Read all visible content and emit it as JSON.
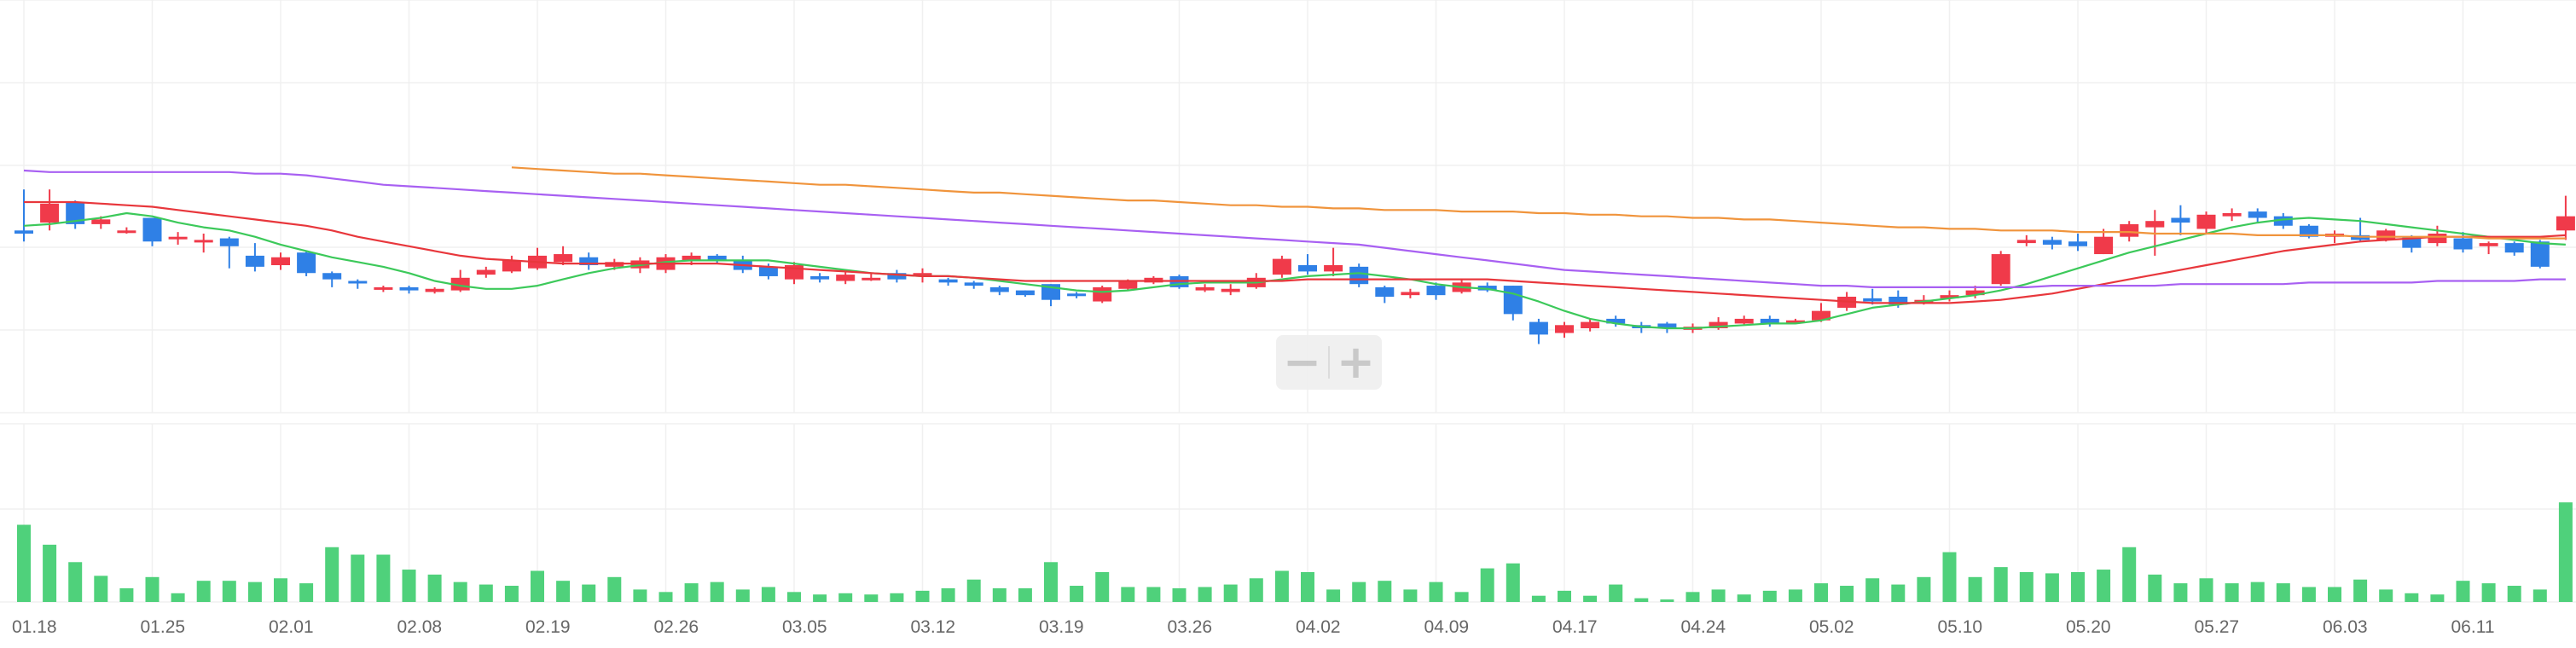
{
  "chart_data": {
    "type": "candlestick",
    "x_tick_labels": [
      "01.18",
      "01.25",
      "02.01",
      "02.08",
      "02.19",
      "02.26",
      "03.05",
      "03.12",
      "03.19",
      "03.26",
      "04.02",
      "04.09",
      "04.17",
      "04.24",
      "05.02",
      "05.10",
      "05.20",
      "05.27",
      "06.03",
      "06.11"
    ],
    "x_tick_index": [
      0,
      5,
      10,
      15,
      20,
      25,
      30,
      35,
      40,
      45,
      50,
      55,
      60,
      65,
      70,
      75,
      80,
      85,
      90,
      95
    ],
    "colors": {
      "up": "#f03a4a",
      "down": "#2f80e6",
      "volume": "#4fd17b",
      "ma5": "#3cc95a",
      "ma20": "#e8373c",
      "ma60": "#a860f2",
      "ma120": "#f0943c",
      "grid": "#f0f0f0"
    },
    "grid": true,
    "price_ylim": [
      0,
      100
    ],
    "volume_ylim": [
      0,
      100
    ],
    "candles": [
      [
        62,
        60,
        88,
        55
      ],
      [
        67,
        79,
        88,
        62
      ],
      [
        80,
        66,
        81,
        63
      ],
      [
        66,
        69,
        71,
        63
      ],
      [
        61,
        62,
        64,
        60
      ],
      [
        70,
        55,
        70,
        52
      ],
      [
        58,
        58,
        61,
        53
      ],
      [
        56,
        56,
        60,
        48
      ],
      [
        57,
        52,
        58,
        38
      ],
      [
        46,
        39,
        54,
        36
      ],
      [
        40,
        45,
        48,
        37
      ],
      [
        48,
        35,
        49,
        33
      ],
      [
        35,
        31,
        36,
        26
      ],
      [
        30,
        29,
        31,
        25
      ],
      [
        25,
        26,
        27,
        23
      ],
      [
        26,
        24,
        27,
        22
      ],
      [
        23,
        25,
        26,
        22
      ],
      [
        24,
        32,
        37,
        23
      ],
      [
        34,
        37,
        39,
        32
      ],
      [
        36,
        43,
        46,
        35
      ],
      [
        38,
        46,
        51,
        37
      ],
      [
        42,
        47,
        52,
        40
      ],
      [
        45,
        40,
        48,
        37
      ],
      [
        39,
        42,
        44,
        37
      ],
      [
        38,
        43,
        45,
        35
      ],
      [
        37,
        45,
        47,
        35
      ],
      [
        43,
        46,
        48,
        40
      ],
      [
        46,
        43,
        47,
        41
      ],
      [
        43,
        37,
        46,
        35
      ],
      [
        39,
        33,
        41,
        31
      ],
      [
        31,
        40,
        42,
        28
      ],
      [
        33,
        31,
        35,
        29
      ],
      [
        30,
        34,
        36,
        28
      ],
      [
        32,
        32,
        35,
        30
      ],
      [
        35,
        31,
        37,
        29
      ],
      [
        33,
        35,
        38,
        29
      ],
      [
        31,
        29,
        32,
        27
      ],
      [
        29,
        27,
        30,
        25
      ],
      [
        26,
        23,
        27,
        21
      ],
      [
        24,
        21,
        24,
        20
      ],
      [
        28,
        18,
        28,
        14
      ],
      [
        22,
        21,
        23,
        19
      ],
      [
        17,
        26,
        27,
        16
      ],
      [
        25,
        30,
        31,
        24
      ],
      [
        29,
        32,
        33,
        28
      ],
      [
        33,
        26,
        34,
        25
      ],
      [
        24,
        26,
        28,
        23
      ],
      [
        23,
        25,
        28,
        21
      ],
      [
        26,
        32,
        35,
        25
      ],
      [
        34,
        44,
        46,
        32
      ],
      [
        40,
        36,
        47,
        34
      ],
      [
        36,
        40,
        51,
        33
      ],
      [
        39,
        28,
        41,
        26
      ],
      [
        26,
        20,
        27,
        16
      ],
      [
        21,
        23,
        25,
        19
      ],
      [
        27,
        21,
        29,
        18
      ],
      [
        23,
        29,
        31,
        22
      ],
      [
        27,
        24,
        29,
        23
      ],
      [
        27,
        9,
        27,
        5
      ],
      [
        4,
        -4,
        6,
        -10
      ],
      [
        -3,
        2,
        4,
        -6
      ],
      [
        0,
        4,
        6,
        -2
      ],
      [
        6,
        3,
        8,
        1
      ],
      [
        2,
        0,
        4,
        -3
      ],
      [
        3,
        0,
        4,
        -3
      ],
      [
        -1,
        1,
        3,
        -3
      ],
      [
        0,
        4,
        7,
        -1
      ],
      [
        3,
        6,
        8,
        2
      ],
      [
        6,
        3,
        8,
        1
      ],
      [
        4,
        5,
        6,
        3
      ],
      [
        5,
        11,
        16,
        4
      ],
      [
        13,
        20,
        23,
        11
      ],
      [
        19,
        17,
        25,
        15
      ],
      [
        20,
        15,
        24,
        13
      ],
      [
        16,
        18,
        21,
        15
      ],
      [
        19,
        21,
        24,
        17
      ],
      [
        21,
        24,
        27,
        19
      ],
      [
        28,
        47,
        49,
        27
      ],
      [
        54,
        56,
        59,
        52
      ],
      [
        56,
        53,
        58,
        50
      ],
      [
        55,
        52,
        60,
        49
      ],
      [
        47,
        58,
        63,
        47
      ],
      [
        58,
        66,
        68,
        55
      ],
      [
        64,
        68,
        75,
        46
      ],
      [
        70,
        67,
        78,
        59
      ],
      [
        63,
        72,
        74,
        60
      ],
      [
        71,
        73,
        76,
        68
      ],
      [
        74,
        70,
        76,
        67
      ],
      [
        71,
        65,
        73,
        63
      ],
      [
        65,
        58,
        66,
        57
      ],
      [
        58,
        60,
        62,
        54
      ],
      [
        59,
        56,
        70,
        55
      ],
      [
        56,
        62,
        63,
        55
      ],
      [
        58,
        51,
        59,
        48
      ],
      [
        54,
        60,
        65,
        52
      ],
      [
        57,
        50,
        61,
        48
      ],
      [
        52,
        54,
        55,
        47
      ],
      [
        54,
        48,
        55,
        46
      ],
      [
        55,
        39,
        56,
        38
      ],
      [
        62,
        71,
        84,
        56
      ]
    ],
    "volume": [
      62,
      46,
      32,
      21,
      11,
      20,
      7,
      17,
      17,
      16,
      19,
      15,
      44,
      38,
      38,
      26,
      22,
      16,
      14,
      13,
      25,
      17,
      14,
      20,
      10,
      8,
      15,
      16,
      10,
      12,
      8,
      6,
      7,
      6,
      7,
      9,
      11,
      18,
      11,
      11,
      32,
      13,
      24,
      12,
      12,
      11,
      12,
      14,
      19,
      25,
      24,
      10,
      16,
      17,
      10,
      16,
      8,
      27,
      31,
      5,
      9,
      5,
      14,
      3,
      2,
      8,
      10,
      6,
      9,
      10,
      15,
      13,
      19,
      14,
      20,
      40,
      20,
      28,
      24,
      23,
      24,
      26,
      44,
      22,
      15,
      19,
      15,
      16,
      15,
      12,
      12,
      18,
      10,
      7,
      6,
      17,
      15,
      13,
      10,
      80
    ],
    "ma_lines": [
      {
        "key": "ma5",
        "start": 0,
        "values": [
          65,
          66,
          68,
          70,
          73,
          71,
          67,
          64,
          62,
          58,
          53,
          49,
          45,
          42,
          39,
          35,
          30,
          27,
          25,
          25,
          27,
          31,
          35,
          38,
          40,
          42,
          43,
          43,
          43,
          43,
          41,
          39,
          37,
          35,
          34,
          33,
          33,
          32,
          30,
          28,
          26,
          24,
          23,
          24,
          26,
          28,
          29,
          29,
          29,
          31,
          33,
          34,
          35,
          33,
          31,
          28,
          26,
          25,
          22,
          17,
          11,
          6,
          3,
          1,
          0,
          0,
          1,
          2,
          3,
          3,
          5,
          9,
          13,
          15,
          17,
          19,
          21,
          24,
          28,
          33,
          38,
          43,
          48,
          52,
          56,
          60,
          64,
          67,
          69,
          70,
          69,
          68,
          66,
          64,
          62,
          60,
          58,
          56,
          54,
          53
        ]
      },
      {
        "key": "ma20",
        "start": 0,
        "values": [
          80,
          80,
          80,
          79,
          78,
          77,
          75,
          73,
          71,
          69,
          67,
          65,
          62,
          58,
          55,
          52,
          49,
          46,
          44,
          43,
          42,
          41,
          41,
          41,
          41,
          41,
          41,
          41,
          40,
          39,
          38,
          37,
          36,
          35,
          34,
          33,
          33,
          32,
          31,
          30,
          30,
          30,
          30,
          30,
          30,
          30,
          30,
          30,
          30,
          30,
          31,
          31,
          31,
          31,
          31,
          31,
          31,
          31,
          30,
          29,
          28,
          27,
          26,
          25,
          24,
          23,
          22,
          21,
          20,
          19,
          18,
          17,
          16,
          16,
          16,
          16,
          17,
          18,
          20,
          22,
          25,
          28,
          31,
          34,
          37,
          40,
          43,
          46,
          49,
          51,
          53,
          55,
          56,
          57,
          58,
          58,
          58,
          58,
          58,
          59
        ]
      },
      {
        "key": "ma60",
        "start": 0,
        "values": [
          100,
          99,
          99,
          99,
          99,
          99,
          99,
          99,
          99,
          98,
          98,
          97,
          95,
          93,
          91,
          90,
          89,
          88,
          87,
          86,
          85,
          84,
          83,
          82,
          81,
          80,
          79,
          78,
          77,
          76,
          75,
          74,
          73,
          72,
          71,
          70,
          69,
          68,
          67,
          66,
          65,
          64,
          63,
          62,
          61,
          60,
          59,
          58,
          57,
          56,
          55,
          54,
          53,
          51,
          49,
          47,
          45,
          43,
          41,
          39,
          37,
          36,
          35,
          34,
          33,
          32,
          31,
          30,
          29,
          28,
          27,
          27,
          26,
          26,
          26,
          26,
          26,
          26,
          26,
          27,
          27,
          27,
          27,
          27,
          28,
          28,
          28,
          28,
          28,
          29,
          29,
          29,
          29,
          29,
          30,
          30,
          30,
          30,
          31,
          31
        ]
      },
      {
        "key": "ma120",
        "start": 19,
        "values": [
          102,
          101,
          100,
          99,
          98,
          98,
          97,
          96,
          95,
          94,
          93,
          92,
          91,
          91,
          90,
          89,
          88,
          87,
          86,
          86,
          85,
          84,
          83,
          82,
          81,
          81,
          80,
          79,
          78,
          78,
          77,
          77,
          76,
          76,
          75,
          75,
          75,
          74,
          74,
          74,
          73,
          73,
          72,
          72,
          71,
          71,
          70,
          70,
          69,
          69,
          68,
          67,
          66,
          65,
          64,
          64,
          63,
          63,
          62,
          62,
          62,
          61,
          61,
          61,
          60,
          60,
          60,
          60,
          59,
          59,
          59,
          59,
          58,
          58,
          58,
          58,
          58,
          57,
          57,
          57,
          57
        ]
      }
    ]
  }
}
